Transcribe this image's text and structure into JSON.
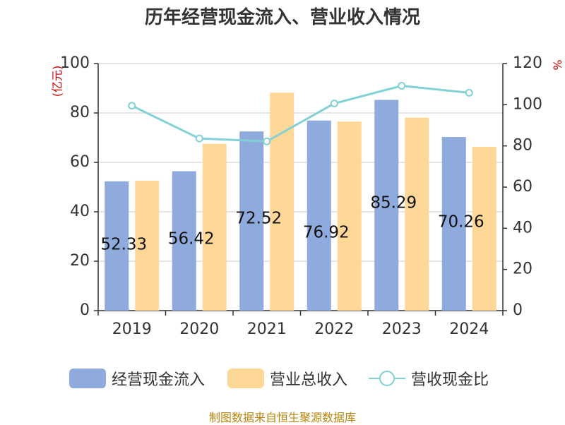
{
  "chart_data": {
    "type": "bar",
    "title": "历年经营现金流入、营业收入情况",
    "categories": [
      "2019",
      "2020",
      "2021",
      "2022",
      "2023",
      "2024"
    ],
    "y_left": {
      "unit": "(亿元)",
      "min": 0,
      "max": 100,
      "ticks": [
        0,
        20,
        40,
        60,
        80,
        100
      ]
    },
    "y_right": {
      "unit": "%",
      "min": 0,
      "max": 120,
      "ticks": [
        0,
        20,
        40,
        60,
        80,
        100,
        120
      ]
    },
    "series": [
      {
        "name": "经营现金流入",
        "type": "bar",
        "axis": "left",
        "color": "#8faadc",
        "values": [
          52.33,
          56.42,
          72.52,
          76.92,
          85.29,
          70.26
        ],
        "labels": [
          "52.33",
          "56.42",
          "72.52",
          "76.92",
          "85.29",
          "70.26"
        ]
      },
      {
        "name": "营业总收入",
        "type": "bar",
        "axis": "left",
        "color": "#ffd898",
        "values": [
          52.6,
          67.5,
          88.2,
          76.5,
          78.1,
          66.3
        ]
      },
      {
        "name": "营收现金比",
        "type": "line",
        "axis": "right",
        "color": "#82d1d5",
        "values": [
          99.5,
          83.6,
          82.2,
          100.6,
          109.2,
          105.8
        ]
      }
    ],
    "grid": true,
    "legend_position": "bottom"
  },
  "source_text": "制图数据来自恒生聚源数据库",
  "colors": {
    "axis_unit": "#cc0000",
    "source": "#b8860b",
    "axis": "#333333",
    "grid": "#cccccc"
  }
}
